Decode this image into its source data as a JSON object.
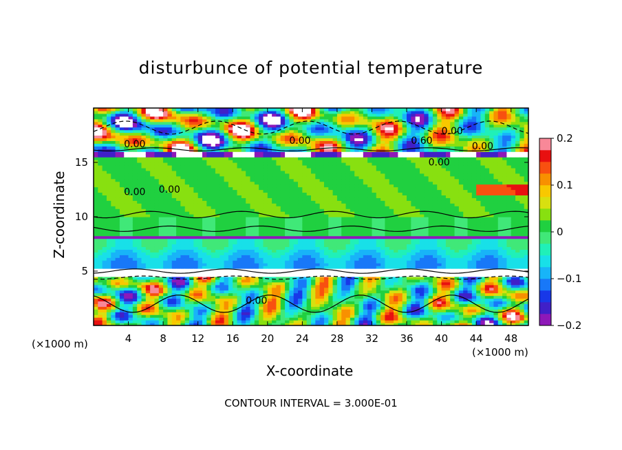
{
  "chart_data": {
    "type": "heatmap",
    "title": "disturbunce of potential temperature",
    "xlabel": "X-coordinate",
    "ylabel": "Z-coordinate",
    "x_unit": "(×1000 m)",
    "y_unit": "(×1000 m)",
    "xlim": [
      0,
      50
    ],
    "ylim": [
      0,
      20
    ],
    "x_ticks": [
      4,
      8,
      12,
      16,
      20,
      24,
      28,
      32,
      36,
      40,
      44,
      48
    ],
    "y_ticks": [
      5,
      10,
      15
    ],
    "colorbar": {
      "range": [
        -0.2,
        0.2
      ],
      "tick_labels": [
        "0.2",
        "0.1",
        "0",
        "−0.1",
        "−0.2"
      ],
      "tick_values": [
        0.2,
        0.1,
        0,
        -0.1,
        -0.2
      ],
      "colors": [
        "#8e18b8",
        "#4020c8",
        "#1838e8",
        "#1878f8",
        "#18b4f8",
        "#18e0e8",
        "#20f0b8",
        "#40e878",
        "#20d040",
        "#88e010",
        "#d8e010",
        "#f8c800",
        "#f89000",
        "#f85010",
        "#e81010",
        "#f88898"
      ]
    },
    "bands": [
      {
        "z_range": [
          15.5,
          20
        ],
        "description_value": "oscillating positive/negative"
      },
      {
        "z_range": [
          10,
          15.5
        ],
        "value": 0.02
      },
      {
        "z_range": [
          8,
          10
        ],
        "value": 0.0
      },
      {
        "z_range": [
          5,
          8
        ],
        "value": -0.07
      },
      {
        "z_range": [
          0,
          5
        ],
        "description_value": "oscillating positive/negative"
      }
    ],
    "contour_labels": [
      {
        "x": 3.5,
        "z": 16.4,
        "text": "0.00"
      },
      {
        "x": 22.5,
        "z": 16.7,
        "text": "0.00"
      },
      {
        "x": 36.5,
        "z": 16.7,
        "text": "0.60"
      },
      {
        "x": 40,
        "z": 17.6,
        "text": "0.00"
      },
      {
        "x": 43.5,
        "z": 16.2,
        "text": "0.00"
      },
      {
        "x": 38.5,
        "z": 14.7,
        "text": "0.00"
      },
      {
        "x": 3.5,
        "z": 12.0,
        "text": "0.00"
      },
      {
        "x": 7.5,
        "z": 12.2,
        "text": "0.00"
      },
      {
        "x": 17.5,
        "z": 2.0,
        "text": "0.00"
      }
    ]
  },
  "footer": "CONTOUR INTERVAL = 3.000E-01"
}
